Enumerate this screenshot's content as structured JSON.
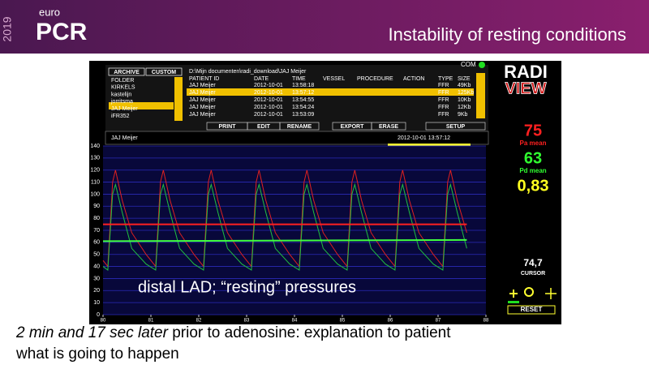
{
  "header": {
    "year": "2019",
    "brand_top": "euro",
    "brand": "PCR",
    "title": "Instability of resting conditions"
  },
  "ui": {
    "status": "COM",
    "tabs": [
      "ARCHIVE",
      "CUSTOM"
    ],
    "folders": [
      "FOLDER",
      "KIRKELS",
      "kastelijn",
      "jorritsma",
      "JAJ Meijer",
      "iFR352"
    ],
    "path": "D:\\Mijn documenten\\radi_download\\JAJ Meijer",
    "columns": [
      "PATIENT ID",
      "DATE",
      "TIME",
      "VESSEL",
      "PROCEDURE",
      "ACTION",
      "TYPE",
      "SIZE"
    ],
    "rows": [
      [
        "JAJ Meijer",
        "2012-10-01",
        "13:58:18",
        "FFR",
        "49Kb"
      ],
      [
        "JAJ Meijer",
        "2012-10-01",
        "13:57:12",
        "FFR",
        "125Kb"
      ],
      [
        "JAJ Meijer",
        "2012-10-01",
        "13:54:55",
        "FFR",
        "10Kb"
      ],
      [
        "JAJ Meijer",
        "2012-10-01",
        "13:54:24",
        "FFR",
        "12Kb"
      ],
      [
        "JAJ Meijer",
        "2012-10-01",
        "13:53:09",
        "FFR",
        "9Kb"
      ]
    ],
    "buttons": [
      "PRINT",
      "EDIT",
      "RENAME",
      "EXPORT",
      "ERASE",
      "SETUP"
    ],
    "patient": "JAJ Meijer",
    "timestamp": "2012-10-01 13:57:12",
    "logo_top": "RADI",
    "logo_bottom": "VIEW",
    "pa_value": "75",
    "pa_label": "Pa mean",
    "pd_value": "63",
    "pd_label": "Pd mean",
    "ratio": "0,83",
    "cursor_value": "74,7",
    "cursor_label": "CURSOR",
    "reset": "RESET"
  },
  "chart_data": {
    "type": "line",
    "xlim": [
      80,
      88
    ],
    "xticks": [
      80,
      81,
      82,
      83,
      84,
      85,
      86,
      87,
      88
    ],
    "ylim": [
      0,
      140
    ],
    "yticks": [
      0,
      10,
      20,
      30,
      40,
      50,
      60,
      70,
      80,
      90,
      100,
      110,
      120,
      130,
      140
    ],
    "grid": true,
    "series": [
      {
        "color": "#e02020",
        "x": [
          80,
          80.1,
          80.2,
          80.26,
          80.4,
          80.6,
          80.9,
          81.1,
          81.2,
          81.26,
          81.4,
          81.6,
          81.9,
          82.1,
          82.2,
          82.26,
          82.4,
          82.6,
          82.9,
          83.1,
          83.2,
          83.26,
          83.4,
          83.6,
          83.9,
          84.1,
          84.2,
          84.26,
          84.4,
          84.6,
          84.9,
          85.1,
          85.2,
          85.26,
          85.4,
          85.6,
          85.9,
          86.1,
          86.2,
          86.26,
          86.4,
          86.6,
          86.9,
          87.1,
          87.2,
          87.26,
          87.4,
          87.6
        ],
        "values": [
          45,
          40,
          110,
          120,
          95,
          68,
          50,
          40,
          110,
          120,
          95,
          68,
          50,
          40,
          110,
          120,
          95,
          68,
          50,
          40,
          110,
          120,
          95,
          68,
          50,
          40,
          110,
          120,
          95,
          68,
          50,
          40,
          110,
          120,
          95,
          68,
          50,
          40,
          110,
          120,
          95,
          68,
          50,
          40,
          110,
          120,
          95,
          68
        ]
      },
      {
        "color": "#20c040",
        "x": [
          80,
          80.1,
          80.2,
          80.26,
          80.4,
          80.6,
          80.9,
          81.1,
          81.2,
          81.26,
          81.4,
          81.6,
          81.9,
          82.1,
          82.2,
          82.26,
          82.4,
          82.6,
          82.9,
          83.1,
          83.2,
          83.26,
          83.4,
          83.6,
          83.9,
          84.1,
          84.2,
          84.26,
          84.4,
          84.6,
          84.9,
          85.1,
          85.2,
          85.26,
          85.4,
          85.6,
          85.9,
          86.1,
          86.2,
          86.26,
          86.4,
          86.6,
          86.9,
          87.1,
          87.2,
          87.26,
          87.4,
          87.6
        ],
        "values": [
          40,
          37,
          100,
          108,
          85,
          55,
          42,
          37,
          100,
          108,
          85,
          55,
          42,
          37,
          100,
          108,
          85,
          55,
          42,
          37,
          100,
          108,
          85,
          55,
          42,
          37,
          100,
          108,
          85,
          55,
          42,
          37,
          100,
          108,
          85,
          55,
          42,
          37,
          100,
          108,
          85,
          55,
          42,
          37,
          100,
          108,
          85,
          55
        ]
      },
      {
        "color": "#ff2020",
        "x": [
          80,
          87.6
        ],
        "values": [
          75,
          75
        ]
      },
      {
        "color": "#40ff40",
        "x": [
          80,
          87.6
        ],
        "values": [
          61,
          62
        ]
      }
    ]
  },
  "overlay": "distal LAD; “resting” pressures",
  "caption": {
    "italic": "2 min and 17 sec later",
    "rest": " prior to adenosine: explanation to patient what is going to happen"
  }
}
